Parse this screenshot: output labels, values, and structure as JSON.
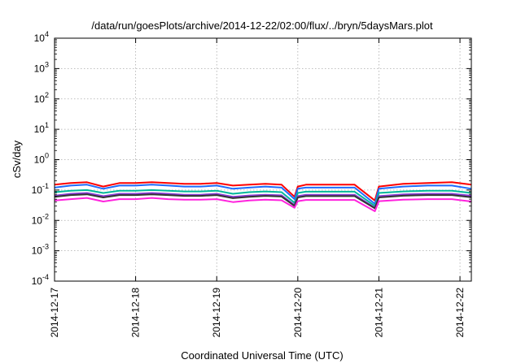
{
  "chart_data": {
    "type": "line",
    "title": "/data/run/goesPlots/archive/2014-12-22/02:00/flux/../bryn/5daysMars.plot",
    "xlabel": "Coordinated Universal Time (UTC)",
    "ylabel": "cSv/day",
    "yscale": "log",
    "ylim": [
      0.0001,
      10000
    ],
    "xlim": [
      0,
      5.14
    ],
    "grid": true,
    "x_ticks": [
      {
        "label": "2014-12-17",
        "value": 0
      },
      {
        "label": "2014-12-18",
        "value": 1
      },
      {
        "label": "2014-12-19",
        "value": 2
      },
      {
        "label": "2014-12-20",
        "value": 3
      },
      {
        "label": "2014-12-21",
        "value": 4
      },
      {
        "label": "2014-12-22",
        "value": 5
      }
    ],
    "y_ticks": [
      {
        "base": "10",
        "exp": "-4",
        "value": 0.0001
      },
      {
        "base": "10",
        "exp": "-3",
        "value": 0.001
      },
      {
        "base": "10",
        "exp": "-2",
        "value": 0.01
      },
      {
        "base": "10",
        "exp": "-1",
        "value": 0.1
      },
      {
        "base": "10",
        "exp": "0",
        "value": 1
      },
      {
        "base": "10",
        "exp": "1",
        "value": 10
      },
      {
        "base": "10",
        "exp": "2",
        "value": 100
      },
      {
        "base": "10",
        "exp": "3",
        "value": 1000
      },
      {
        "base": "10",
        "exp": "4",
        "value": 10000
      }
    ],
    "x": [
      0,
      0.2,
      0.4,
      0.6,
      0.8,
      1.0,
      1.2,
      1.4,
      1.6,
      1.8,
      2.0,
      2.2,
      2.4,
      2.6,
      2.8,
      2.96,
      3.0,
      3.1,
      3.4,
      3.7,
      3.95,
      4.0,
      4.3,
      4.6,
      4.9,
      5.14
    ],
    "series": [
      {
        "color": "#ff0000",
        "values": [
          0.15,
          0.17,
          0.18,
          0.13,
          0.17,
          0.17,
          0.18,
          0.17,
          0.16,
          0.16,
          0.17,
          0.14,
          0.15,
          0.16,
          0.15,
          0.06,
          0.13,
          0.15,
          0.15,
          0.15,
          0.045,
          0.13,
          0.16,
          0.17,
          0.18,
          0.15
        ]
      },
      {
        "color": "#1e6cff",
        "values": [
          0.12,
          0.14,
          0.15,
          0.11,
          0.14,
          0.14,
          0.15,
          0.14,
          0.13,
          0.13,
          0.14,
          0.11,
          0.12,
          0.13,
          0.12,
          0.05,
          0.11,
          0.12,
          0.12,
          0.12,
          0.035,
          0.11,
          0.13,
          0.14,
          0.14,
          0.11
        ]
      },
      {
        "color": "#00b89a",
        "values": [
          0.085,
          0.095,
          0.1,
          0.08,
          0.095,
          0.095,
          0.1,
          0.095,
          0.09,
          0.09,
          0.095,
          0.075,
          0.085,
          0.09,
          0.085,
          0.038,
          0.08,
          0.088,
          0.088,
          0.088,
          0.03,
          0.08,
          0.09,
          0.095,
          0.095,
          0.08
        ]
      },
      {
        "color": "#8a3ad6",
        "values": [
          0.065,
          0.075,
          0.08,
          0.063,
          0.075,
          0.075,
          0.08,
          0.075,
          0.07,
          0.07,
          0.075,
          0.06,
          0.066,
          0.07,
          0.067,
          0.032,
          0.063,
          0.07,
          0.07,
          0.07,
          0.026,
          0.063,
          0.072,
          0.075,
          0.075,
          0.065
        ]
      },
      {
        "color": "#333333",
        "values": [
          0.06,
          0.068,
          0.072,
          0.057,
          0.068,
          0.068,
          0.072,
          0.068,
          0.064,
          0.064,
          0.068,
          0.054,
          0.06,
          0.064,
          0.061,
          0.03,
          0.057,
          0.063,
          0.063,
          0.063,
          0.025,
          0.057,
          0.065,
          0.068,
          0.068,
          0.058
        ]
      },
      {
        "color": "#ff22dd",
        "values": [
          0.045,
          0.05,
          0.055,
          0.042,
          0.05,
          0.05,
          0.055,
          0.05,
          0.048,
          0.048,
          0.05,
          0.04,
          0.045,
          0.048,
          0.046,
          0.026,
          0.043,
          0.047,
          0.047,
          0.047,
          0.02,
          0.043,
          0.048,
          0.05,
          0.05,
          0.042
        ]
      }
    ]
  }
}
